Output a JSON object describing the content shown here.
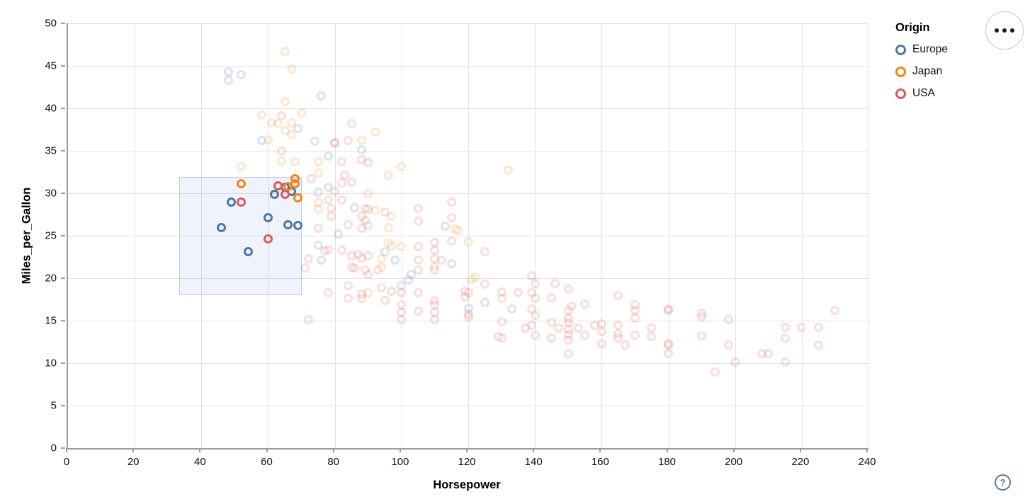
{
  "window": {
    "background": "#ffffff"
  },
  "axes": {
    "x": {
      "title": "Horsepower",
      "min": 0,
      "max": 240,
      "ticks": [
        0,
        20,
        40,
        60,
        80,
        100,
        120,
        140,
        160,
        180,
        200,
        220,
        240
      ]
    },
    "y": {
      "title": "Miles_per_Gallon",
      "min": 0,
      "max": 50,
      "ticks": [
        0,
        5,
        10,
        15,
        20,
        25,
        30,
        35,
        40,
        45,
        50
      ]
    }
  },
  "legend": {
    "title": "Origin",
    "items": [
      {
        "label": "Europe",
        "color": "#4c78a8"
      },
      {
        "label": "Japan",
        "color": "#f58518"
      },
      {
        "label": "USA",
        "color": "#e45756"
      }
    ]
  },
  "controls": {
    "actions_icon": "ellipsis-icon",
    "help_icon": "question-mark-icon",
    "help_label": "?"
  },
  "selection": {
    "type": "interval-brush",
    "x_range_hp": [
      33.3,
      69.7
    ],
    "y_range_mpg": [
      18.2,
      31.9
    ],
    "fill": "rgba(130,165,225,0.13)",
    "stroke": "rgba(140,165,220,0.55)"
  },
  "chart_data": {
    "type": "scatter",
    "title": "",
    "xlabel": "Horsepower",
    "ylabel": "Miles_per_Gallon",
    "xlim": [
      0,
      240
    ],
    "ylim": [
      0,
      50
    ],
    "grid": true,
    "legend_position": "top-right",
    "point_style": "hollow-circle",
    "selected_opacity": 1.0,
    "unselected_opacity": 0.2,
    "series": [
      {
        "name": "Europe",
        "color": "#4c78a8",
        "selected": [
          [
            49,
            29.0
          ],
          [
            46,
            26.0
          ],
          [
            54,
            23.1
          ],
          [
            60,
            27.1
          ],
          [
            62,
            29.9
          ],
          [
            65,
            30.7
          ],
          [
            67,
            30.2
          ],
          [
            66,
            26.3
          ],
          [
            69,
            26.2
          ]
        ],
        "unselected": [
          [
            48,
            44.3
          ],
          [
            52,
            44.0
          ],
          [
            48,
            43.3
          ],
          [
            76,
            41.5
          ],
          [
            69,
            37.6
          ],
          [
            58,
            36.2
          ],
          [
            74,
            36.1
          ],
          [
            88,
            35.1
          ],
          [
            78,
            34.4
          ],
          [
            78,
            30.7
          ],
          [
            75,
            30.1
          ],
          [
            86,
            28.3
          ],
          [
            81,
            25.2
          ],
          [
            113,
            26.1
          ],
          [
            75,
            23.9
          ],
          [
            76,
            22.1
          ],
          [
            95,
            23.1
          ],
          [
            98,
            22.1
          ],
          [
            103,
            20.5
          ],
          [
            102,
            19.8
          ],
          [
            115,
            21.7
          ],
          [
            120,
            16.5
          ],
          [
            125,
            17.1
          ],
          [
            133,
            16.4
          ]
        ]
      },
      {
        "name": "Japan",
        "color": "#f58518",
        "selected": [
          [
            52,
            31.1
          ],
          [
            68,
            31.7
          ],
          [
            68,
            31.1
          ],
          [
            66,
            30.8
          ],
          [
            69,
            29.5
          ]
        ],
        "unselected": [
          [
            65,
            46.7
          ],
          [
            67,
            44.6
          ],
          [
            65,
            40.8
          ],
          [
            70,
            39.5
          ],
          [
            58,
            39.2
          ],
          [
            61,
            38.3
          ],
          [
            63,
            38.2
          ],
          [
            67,
            38.3
          ],
          [
            65,
            37.4
          ],
          [
            67,
            36.9
          ],
          [
            92,
            37.2
          ],
          [
            88,
            36.2
          ],
          [
            60,
            36.3
          ],
          [
            64,
            33.8
          ],
          [
            68,
            33.7
          ],
          [
            52,
            33.1
          ],
          [
            75,
            33.7
          ],
          [
            100,
            33.1
          ],
          [
            96,
            32.1
          ],
          [
            75,
            32.4
          ],
          [
            90,
            30.0
          ],
          [
            75,
            29.0
          ],
          [
            75,
            28.1
          ],
          [
            92,
            28.0
          ],
          [
            97,
            27.3
          ],
          [
            96,
            26.0
          ],
          [
            116,
            25.8
          ],
          [
            132,
            32.7
          ],
          [
            117,
            25.6
          ],
          [
            120,
            24.3
          ],
          [
            96,
            24.1
          ],
          [
            97,
            23.8
          ],
          [
            100,
            23.7
          ],
          [
            94,
            22.3
          ],
          [
            94,
            21.3
          ],
          [
            110,
            21.4
          ],
          [
            122,
            20.1
          ],
          [
            121,
            19.9
          ],
          [
            90,
            18.3
          ]
        ]
      },
      {
        "name": "USA",
        "color": "#e45756",
        "selected": [
          [
            52,
            29.0
          ],
          [
            63,
            30.9
          ],
          [
            65,
            29.9
          ],
          [
            60,
            24.6
          ]
        ],
        "unselected": [
          [
            64,
            39.1
          ],
          [
            85,
            38.2
          ],
          [
            64,
            35.0
          ],
          [
            80,
            35.9
          ],
          [
            84,
            36.2
          ],
          [
            80,
            36.0
          ],
          [
            82,
            33.7
          ],
          [
            88,
            34.0
          ],
          [
            90,
            33.6
          ],
          [
            73,
            31.7
          ],
          [
            83,
            32.1
          ],
          [
            82,
            31.2
          ],
          [
            85,
            31.3
          ],
          [
            80,
            30.2
          ],
          [
            82,
            29.2
          ],
          [
            78,
            29.2
          ],
          [
            79,
            28.2
          ],
          [
            89,
            28.2
          ],
          [
            90,
            28.1
          ],
          [
            95,
            27.8
          ],
          [
            105,
            28.2
          ],
          [
            105,
            26.7
          ],
          [
            115,
            29.0
          ],
          [
            115,
            27.1
          ],
          [
            89,
            26.8
          ],
          [
            90,
            26.2
          ],
          [
            88,
            25.9
          ],
          [
            84,
            26.3
          ],
          [
            79,
            27.3
          ],
          [
            88,
            27.3
          ],
          [
            75,
            25.9
          ],
          [
            110,
            24.2
          ],
          [
            115,
            24.4
          ],
          [
            105,
            23.7
          ],
          [
            110,
            23.3
          ],
          [
            82,
            23.3
          ],
          [
            78,
            23.4
          ],
          [
            77,
            23.2
          ],
          [
            85,
            22.6
          ],
          [
            87,
            22.8
          ],
          [
            88,
            22.4
          ],
          [
            90,
            22.6
          ],
          [
            105,
            22.1
          ],
          [
            110,
            22.3
          ],
          [
            112,
            22.1
          ],
          [
            85,
            21.3
          ],
          [
            86,
            21.2
          ],
          [
            89,
            21.0
          ],
          [
            90,
            20.5
          ],
          [
            93,
            21.0
          ],
          [
            105,
            21.0
          ],
          [
            110,
            21.0
          ],
          [
            100,
            19.1
          ],
          [
            84,
            19.1
          ],
          [
            78,
            18.3
          ],
          [
            84,
            17.6
          ],
          [
            88,
            18.1
          ],
          [
            88,
            17.6
          ],
          [
            94,
            18.9
          ],
          [
            95,
            17.4
          ],
          [
            97,
            18.5
          ],
          [
            100,
            18.3
          ],
          [
            100,
            16.9
          ],
          [
            100,
            16.0
          ],
          [
            100,
            15.1
          ],
          [
            105,
            18.3
          ],
          [
            105,
            16.1
          ],
          [
            110,
            17.4
          ],
          [
            110,
            16.9
          ],
          [
            110,
            16.0
          ],
          [
            110,
            15.1
          ],
          [
            119,
            18.5
          ],
          [
            119,
            17.8
          ],
          [
            72,
            22.3
          ],
          [
            71,
            21.2
          ],
          [
            72,
            15.1
          ],
          [
            125,
            23.1
          ],
          [
            125,
            19.3
          ],
          [
            120,
            18.3
          ],
          [
            120,
            15.8
          ],
          [
            130,
            18.4
          ],
          [
            130,
            17.6
          ],
          [
            135,
            18.3
          ],
          [
            139,
            20.3
          ],
          [
            140,
            19.4
          ],
          [
            139,
            18.3
          ],
          [
            140,
            17.6
          ],
          [
            146,
            19.4
          ],
          [
            145,
            17.7
          ],
          [
            150,
            18.7
          ],
          [
            151,
            16.7
          ],
          [
            155,
            17.0
          ],
          [
            165,
            18.0
          ],
          [
            170,
            16.9
          ],
          [
            120,
            15.5
          ],
          [
            130,
            14.9
          ],
          [
            129,
            13.1
          ],
          [
            130,
            13.0
          ],
          [
            137,
            14.1
          ],
          [
            139,
            16.4
          ],
          [
            140,
            15.6
          ],
          [
            139,
            14.5
          ],
          [
            140,
            13.3
          ],
          [
            145,
            14.8
          ],
          [
            145,
            13.0
          ],
          [
            147,
            14.1
          ],
          [
            150,
            16.2
          ],
          [
            150,
            15.3
          ],
          [
            150,
            14.8
          ],
          [
            150,
            14.0
          ],
          [
            150,
            13.4
          ],
          [
            150,
            12.7
          ],
          [
            150,
            11.1
          ],
          [
            153,
            14.1
          ],
          [
            155,
            13.3
          ],
          [
            158,
            14.5
          ],
          [
            160,
            14.6
          ],
          [
            160,
            13.7
          ],
          [
            160,
            12.3
          ],
          [
            165,
            14.5
          ],
          [
            165,
            13.5
          ],
          [
            165,
            13.0
          ],
          [
            167,
            12.1
          ],
          [
            170,
            16.2
          ],
          [
            170,
            15.3
          ],
          [
            170,
            13.3
          ],
          [
            175,
            14.1
          ],
          [
            175,
            13.1
          ],
          [
            180,
            16.4
          ],
          [
            180,
            16.2
          ],
          [
            180,
            12.3
          ],
          [
            180,
            12.1
          ],
          [
            180,
            11.1
          ],
          [
            190,
            15.9
          ],
          [
            190,
            15.5
          ],
          [
            190,
            13.2
          ],
          [
            198,
            15.1
          ],
          [
            198,
            12.1
          ],
          [
            200,
            10.1
          ],
          [
            194,
            9.0
          ],
          [
            208,
            11.1
          ],
          [
            210,
            11.1
          ],
          [
            215,
            14.2
          ],
          [
            215,
            13.0
          ],
          [
            215,
            10.1
          ],
          [
            220,
            14.2
          ],
          [
            225,
            14.2
          ],
          [
            225,
            12.1
          ],
          [
            230,
            16.2
          ]
        ]
      }
    ]
  }
}
